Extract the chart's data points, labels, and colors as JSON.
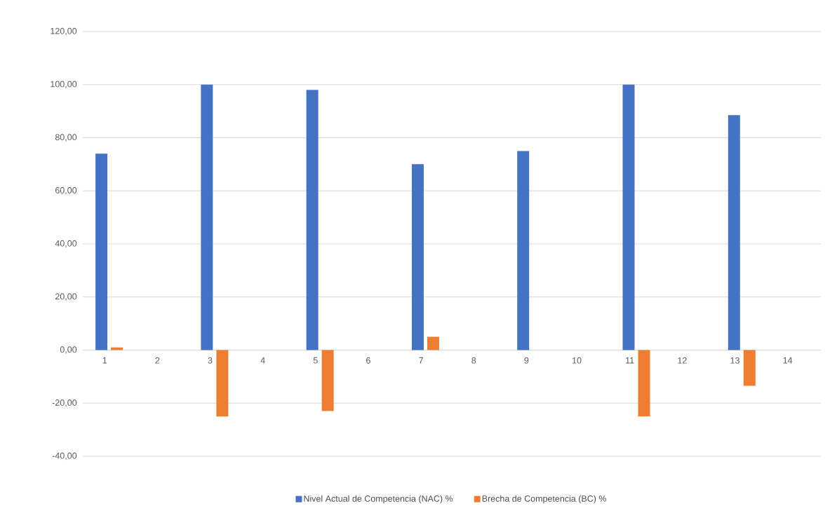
{
  "chart_data": {
    "type": "bar",
    "categories": [
      "1",
      "2",
      "3",
      "4",
      "5",
      "6",
      "7",
      "8",
      "9",
      "10",
      "11",
      "12",
      "13",
      "14"
    ],
    "series": [
      {
        "name": "Nivel Actual de Competencia (NAC) %",
        "color": "#4472c4",
        "values": [
          74,
          null,
          100,
          null,
          98,
          null,
          70,
          null,
          75,
          null,
          100,
          null,
          88.5,
          null
        ]
      },
      {
        "name": "Brecha de Competencia (BC) %",
        "color": "#ed7d31",
        "values": [
          1,
          null,
          -25,
          null,
          -23,
          null,
          5,
          null,
          null,
          null,
          -25,
          null,
          -13.5,
          null
        ]
      }
    ],
    "ylim": [
      -40,
      120
    ],
    "yticks": [
      {
        "value": -40,
        "label": "-40,00"
      },
      {
        "value": -20,
        "label": "-20,00"
      },
      {
        "value": 0,
        "label": "0,00"
      },
      {
        "value": 20,
        "label": "20,00"
      },
      {
        "value": 40,
        "label": "40,00"
      },
      {
        "value": 60,
        "label": "60,00"
      },
      {
        "value": 80,
        "label": "80,00"
      },
      {
        "value": 100,
        "label": "100,00"
      },
      {
        "value": 120,
        "label": "120,00"
      }
    ],
    "grid": "y",
    "legend": "bottom"
  }
}
